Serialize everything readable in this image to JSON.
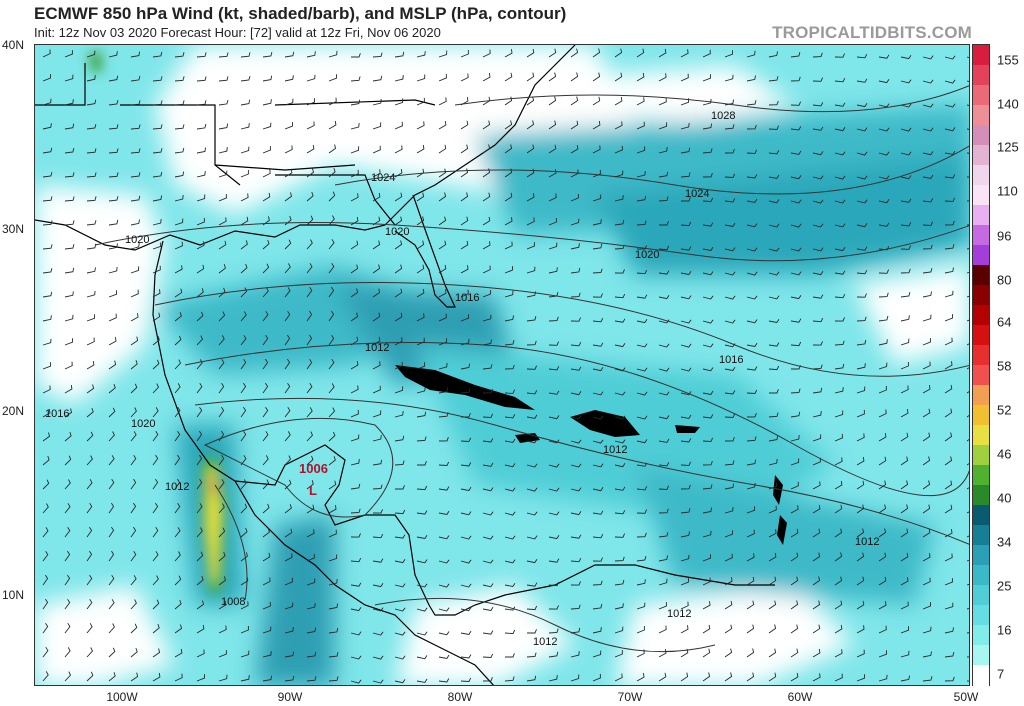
{
  "header": {
    "title": "ECMWF 850 hPa Wind (kt, shaded/barb), and MSLP (hPa, contour)",
    "subtitle": "Init: 12z Nov 03 2020   Forecast Hour: [72]   valid at 12z Fri, Nov 06 2020",
    "credit": "TROPICALTIDBITS.COM"
  },
  "axes": {
    "lat_labels": [
      "40N",
      "30N",
      "20N",
      "10N"
    ],
    "lon_labels": [
      "100W",
      "90W",
      "80W",
      "70W",
      "60W",
      "50W"
    ]
  },
  "colorbar": {
    "labels": [
      "155",
      "140",
      "125",
      "110",
      "96",
      "80",
      "64",
      "58",
      "52",
      "46",
      "40",
      "34",
      "25",
      "16",
      "7"
    ],
    "colors": [
      "#d81e3c",
      "#e3435a",
      "#ea6a78",
      "#ee8f98",
      "#d48fb8",
      "#e3b3d2",
      "#f0d6ea",
      "#f8e4f4",
      "#e8b0f0",
      "#c56ae0",
      "#a33fd8",
      "#5a0000",
      "#8a0000",
      "#b30000",
      "#d41010",
      "#e63030",
      "#f05050",
      "#f0a050",
      "#f0c030",
      "#e8e040",
      "#a0d040",
      "#50b030",
      "#2a8a2a",
      "#0a5a70",
      "#177f95",
      "#2a9fb5",
      "#3cb9c8",
      "#50cdd6",
      "#66dde2",
      "#82ece9",
      "#a8f6f0",
      "#ffffff"
    ]
  },
  "map": {
    "low_label": "1006",
    "low_marker": "L",
    "contour_labels": [
      "1028",
      "1024",
      "1024",
      "1020",
      "1020",
      "1020",
      "1016",
      "1016",
      "1016",
      "1012",
      "1012",
      "1012",
      "1012",
      "1012",
      "1012",
      "1008",
      "1020",
      "1016"
    ]
  }
}
